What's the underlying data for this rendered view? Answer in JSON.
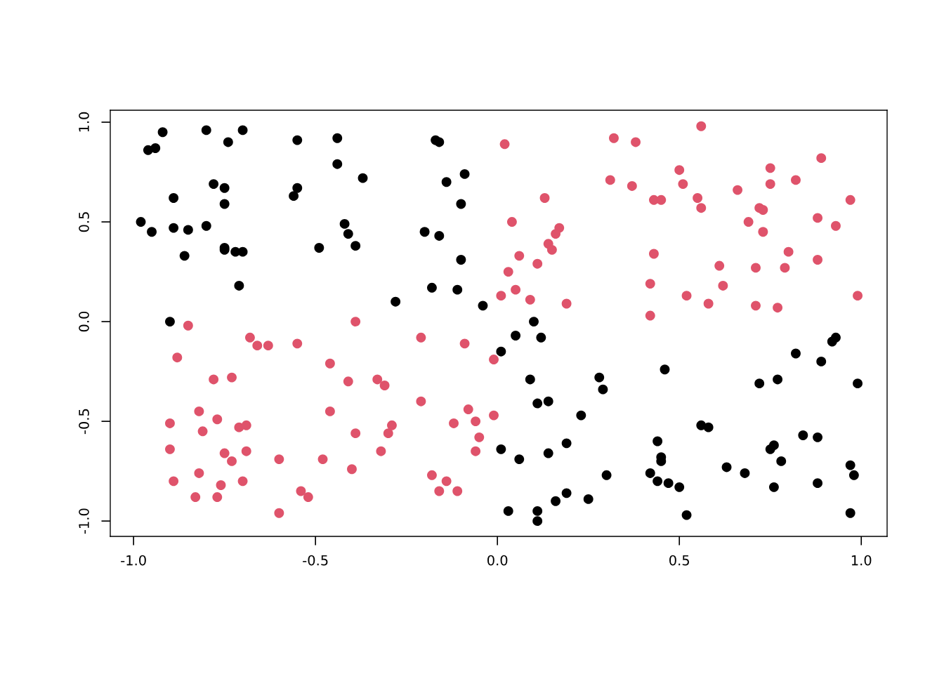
{
  "chart_data": {
    "type": "scatter",
    "marker": "circle",
    "grid": false,
    "xlim": [
      -1.064,
      1.071
    ],
    "ylim": [
      -1.077,
      1.06
    ],
    "xticks": [
      {
        "value": -1,
        "label": "-1.0"
      },
      {
        "value": -0.5,
        "label": "-0.5"
      },
      {
        "value": 0,
        "label": "0.0"
      },
      {
        "value": 0.5,
        "label": "0.5"
      },
      {
        "value": 1,
        "label": "1.0"
      }
    ],
    "yticks": [
      {
        "value": -1,
        "label": "-1.0"
      },
      {
        "value": -0.5,
        "label": "-0.5"
      },
      {
        "value": 0,
        "label": "0.0"
      },
      {
        "value": 0.5,
        "label": "0.5"
      },
      {
        "value": 1,
        "label": "1.0"
      }
    ],
    "series": [
      {
        "color": "#000000",
        "x": [
          -0.92,
          -0.96,
          -0.94,
          -0.8,
          -0.74,
          -0.7,
          -0.89,
          -0.78,
          -0.75,
          -0.75,
          -0.98,
          -0.95,
          -0.89,
          -0.85,
          -0.86,
          -0.8,
          -0.75,
          -0.75,
          -0.72,
          -0.7,
          -0.71,
          -0.9,
          -0.55,
          -0.44,
          -0.55,
          -0.56,
          -0.44,
          -0.37,
          -0.42,
          -0.41,
          -0.39,
          -0.49,
          -0.28,
          -0.17,
          -0.16,
          -0.14,
          -0.09,
          -0.1,
          -0.2,
          -0.16,
          -0.1,
          -0.18,
          -0.11,
          -0.04,
          0.01,
          0.05,
          0.12,
          0.1,
          0.09,
          0.11,
          0.14,
          0.23,
          0.28,
          0.29,
          0.46,
          0.3,
          0.19,
          0.14,
          0.06,
          0.01,
          0.03,
          0.11,
          0.11,
          0.16,
          0.19,
          0.25,
          0.44,
          0.42,
          0.45,
          0.45,
          0.44,
          0.47,
          0.5,
          0.52,
          0.56,
          0.58,
          0.63,
          0.68,
          0.72,
          0.77,
          0.82,
          0.89,
          0.92,
          0.93,
          0.99,
          0.84,
          0.76,
          0.75,
          0.78,
          0.76,
          0.88,
          0.88,
          0.97,
          0.98,
          0.97
        ],
        "values": [
          0.95,
          0.86,
          0.87,
          0.96,
          0.9,
          0.96,
          0.62,
          0.69,
          0.67,
          0.59,
          0.5,
          0.45,
          0.47,
          0.46,
          0.33,
          0.48,
          0.37,
          0.36,
          0.35,
          0.35,
          0.18,
          0.0,
          0.91,
          0.92,
          0.67,
          0.63,
          0.79,
          0.72,
          0.49,
          0.44,
          0.38,
          0.37,
          0.1,
          0.91,
          0.9,
          0.7,
          0.74,
          0.59,
          0.45,
          0.43,
          0.31,
          0.17,
          0.16,
          0.08,
          -0.15,
          -0.07,
          -0.08,
          0.0,
          -0.29,
          -0.41,
          -0.4,
          -0.47,
          -0.28,
          -0.34,
          -0.24,
          -0.77,
          -0.61,
          -0.66,
          -0.69,
          -0.64,
          -0.95,
          -0.95,
          -1.0,
          -0.9,
          -0.86,
          -0.89,
          -0.6,
          -0.76,
          -0.68,
          -0.7,
          -0.8,
          -0.81,
          -0.83,
          -0.97,
          -0.52,
          -0.53,
          -0.73,
          -0.76,
          -0.31,
          -0.29,
          -0.16,
          -0.2,
          -0.1,
          -0.08,
          -0.31,
          -0.57,
          -0.62,
          -0.64,
          -0.7,
          -0.83,
          -0.58,
          -0.81,
          -0.72,
          -0.77,
          -0.96
        ]
      },
      {
        "color": "#df536b",
        "x": [
          0.02,
          0.32,
          0.38,
          0.56,
          0.31,
          0.37,
          0.5,
          0.51,
          0.43,
          0.45,
          0.55,
          0.56,
          0.66,
          0.75,
          0.75,
          0.82,
          0.89,
          0.72,
          0.73,
          0.73,
          0.69,
          0.8,
          0.88,
          0.93,
          0.97,
          0.88,
          0.79,
          0.71,
          0.61,
          0.62,
          0.52,
          0.58,
          0.71,
          0.77,
          0.99,
          0.42,
          0.42,
          0.43,
          0.13,
          0.04,
          0.17,
          0.16,
          0.06,
          0.14,
          0.15,
          0.03,
          0.11,
          0.05,
          0.09,
          0.01,
          0.19,
          -0.85,
          -0.88,
          -0.68,
          -0.66,
          -0.63,
          -0.55,
          -0.39,
          -0.46,
          -0.78,
          -0.73,
          -0.41,
          -0.33,
          -0.31,
          -0.21,
          -0.09,
          -0.01,
          -0.9,
          -0.82,
          -0.81,
          -0.77,
          -0.71,
          -0.69,
          -0.9,
          -0.75,
          -0.73,
          -0.69,
          -0.89,
          -0.82,
          -0.76,
          -0.7,
          -0.6,
          -0.83,
          -0.77,
          -0.6,
          -0.54,
          -0.52,
          -0.48,
          -0.46,
          -0.39,
          -0.4,
          -0.32,
          -0.3,
          -0.29,
          -0.21,
          -0.18,
          -0.16,
          -0.14,
          -0.12,
          -0.11,
          -0.08,
          -0.06,
          -0.05,
          -0.06,
          -0.01
        ],
        "values": [
          0.89,
          0.92,
          0.9,
          0.98,
          0.71,
          0.68,
          0.76,
          0.69,
          0.61,
          0.61,
          0.62,
          0.57,
          0.66,
          0.77,
          0.69,
          0.71,
          0.82,
          0.57,
          0.56,
          0.45,
          0.5,
          0.35,
          0.52,
          0.48,
          0.61,
          0.31,
          0.27,
          0.27,
          0.28,
          0.18,
          0.13,
          0.09,
          0.08,
          0.07,
          0.13,
          0.19,
          0.03,
          0.34,
          0.62,
          0.5,
          0.47,
          0.44,
          0.33,
          0.39,
          0.36,
          0.25,
          0.29,
          0.16,
          0.11,
          0.13,
          0.09,
          -0.02,
          -0.18,
          -0.08,
          -0.12,
          -0.12,
          -0.11,
          0.0,
          -0.21,
          -0.29,
          -0.28,
          -0.3,
          -0.29,
          -0.32,
          -0.08,
          -0.11,
          -0.19,
          -0.51,
          -0.45,
          -0.55,
          -0.49,
          -0.53,
          -0.52,
          -0.64,
          -0.66,
          -0.7,
          -0.65,
          -0.8,
          -0.76,
          -0.82,
          -0.8,
          -0.69,
          -0.88,
          -0.88,
          -0.96,
          -0.85,
          -0.88,
          -0.69,
          -0.45,
          -0.56,
          -0.74,
          -0.65,
          -0.56,
          -0.52,
          -0.4,
          -0.77,
          -0.85,
          -0.8,
          -0.51,
          -0.85,
          -0.44,
          -0.5,
          -0.58,
          -0.65,
          -0.47
        ]
      }
    ]
  }
}
